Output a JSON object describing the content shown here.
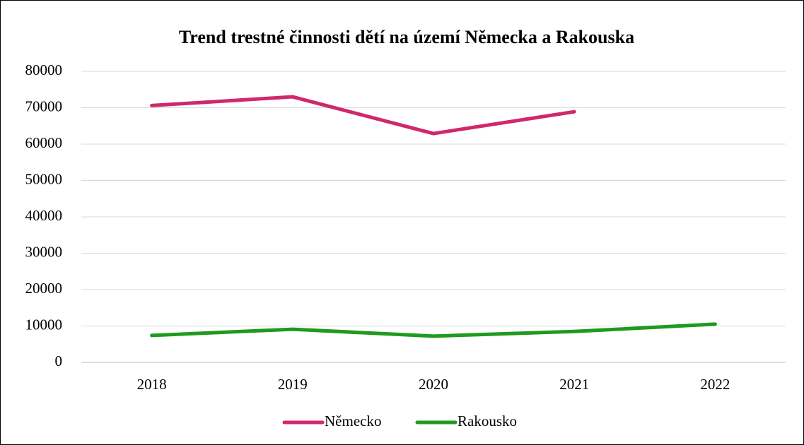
{
  "chart_data": {
    "type": "line",
    "title": "Trend trestné činnosti dětí na území Německa a Rakouska",
    "categories": [
      "2018",
      "2019",
      "2020",
      "2021",
      "2022"
    ],
    "series": [
      {
        "name": "Německo",
        "color": "#d0286b",
        "values": [
          70600,
          73000,
          62900,
          68900,
          null
        ]
      },
      {
        "name": "Rakousko",
        "color": "#1e9a1e",
        "values": [
          7400,
          9100,
          7200,
          8500,
          10500
        ]
      }
    ],
    "ylim": [
      0,
      80000
    ],
    "yticks": [
      0,
      10000,
      20000,
      30000,
      40000,
      50000,
      60000,
      70000,
      80000
    ],
    "grid": true,
    "legend": "bottom"
  }
}
